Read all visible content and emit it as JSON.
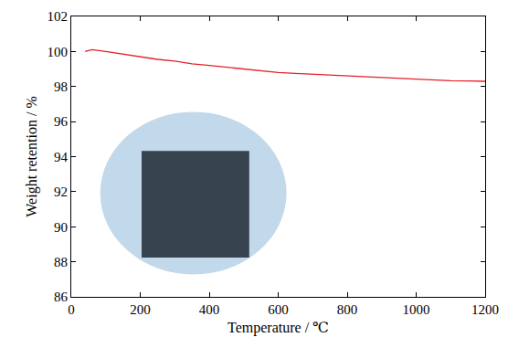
{
  "chart_data": {
    "type": "line",
    "x_label": "Temperature / ℃",
    "y_label": "Weight retention / %",
    "x": [
      40,
      60,
      100,
      150,
      200,
      250,
      300,
      350,
      400,
      450,
      500,
      550,
      600,
      650,
      700,
      750,
      800,
      850,
      900,
      950,
      1000,
      1050,
      1100,
      1150,
      1200
    ],
    "values": [
      100.0,
      100.1,
      100.0,
      99.85,
      99.7,
      99.55,
      99.45,
      99.3,
      99.2,
      99.1,
      99.0,
      98.9,
      98.8,
      98.75,
      98.7,
      98.65,
      98.6,
      98.55,
      98.5,
      98.45,
      98.4,
      98.35,
      98.33,
      98.32,
      98.3
    ],
    "color": "#e3202b",
    "xlim": [
      0,
      1200
    ],
    "xticks": [
      0,
      200,
      400,
      600,
      800,
      1000,
      1200
    ],
    "ylim": [
      86,
      102
    ],
    "yticks": [
      86,
      88,
      90,
      92,
      94,
      96,
      98,
      100,
      102
    ],
    "grid": false
  }
}
